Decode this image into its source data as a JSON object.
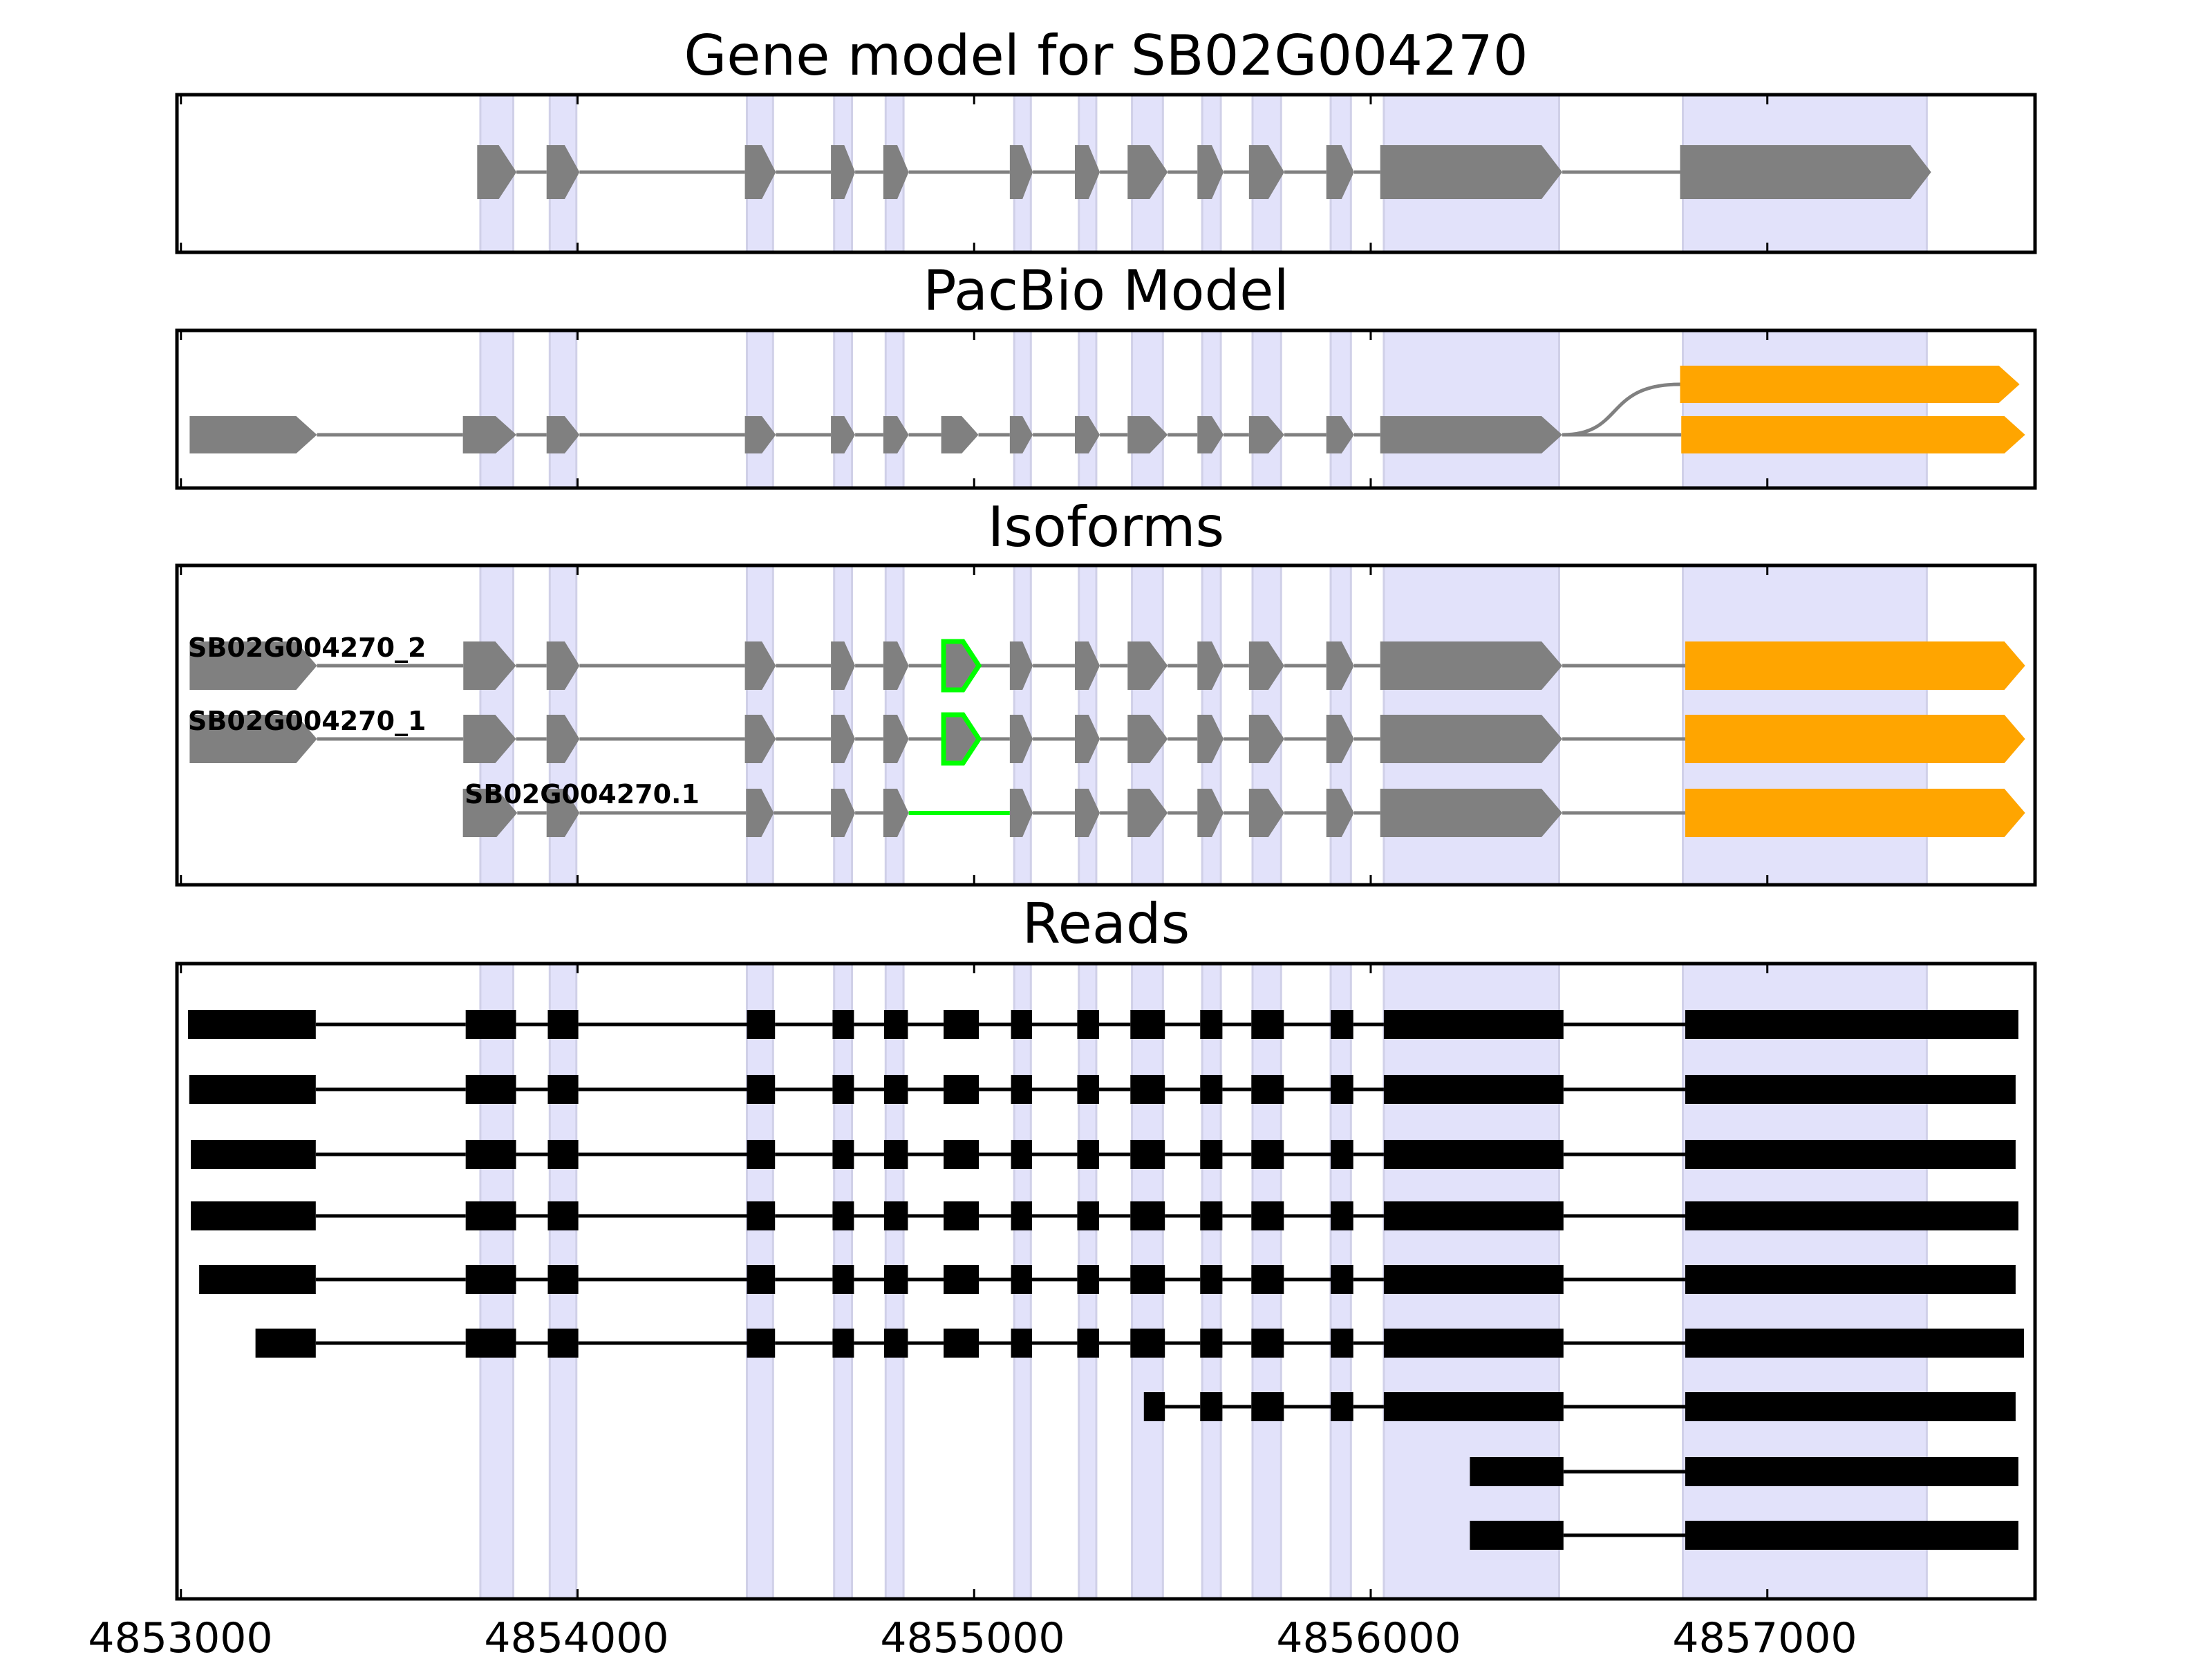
{
  "chart_data": {
    "type": "gene-track",
    "xlim": [
      4852990,
      4857675
    ],
    "x_ticks": [
      4853000,
      4854000,
      4855000,
      4856000,
      4857000
    ],
    "x_tick_labels": [
      "4853000",
      "4854000",
      "4855000",
      "4856000",
      "4857000"
    ],
    "colors": {
      "exon": "#808080",
      "utr": "#ffa500",
      "novel": "#00ff00",
      "read": "#000000",
      "shade": "#e2e2fa",
      "shade_edge": "#d0d0e8"
    },
    "shaded_regions": [
      [
        4853755,
        4853838
      ],
      [
        4853930,
        4853997
      ],
      [
        4854427,
        4854493
      ],
      [
        4854647,
        4854692
      ],
      [
        4854777,
        4854822
      ],
      [
        4855101,
        4855143
      ],
      [
        4855264,
        4855308
      ],
      [
        4855398,
        4855476
      ],
      [
        4855575,
        4855622
      ],
      [
        4855702,
        4855774
      ],
      [
        4855899,
        4855950
      ],
      [
        4856033,
        4856475
      ],
      [
        4856787,
        4857402
      ]
    ],
    "panels": [
      {
        "title": "Gene model for SB02G004270",
        "tracks": [
          {
            "exons": [
              [
                4853747,
                4853846
              ],
              [
                4853922,
                4854005
              ],
              [
                4854422,
                4854500
              ],
              [
                4854639,
                4854700
              ],
              [
                4854771,
                4854835
              ],
              [
                4855090,
                4855148
              ],
              [
                4855254,
                4855317
              ],
              [
                4855387,
                4855488
              ],
              [
                4855563,
                4855629
              ],
              [
                4855693,
                4855782
              ],
              [
                4855888,
                4855958
              ],
              [
                4856024,
                4856483
              ],
              [
                4856780,
                4857413
              ]
            ],
            "color": "#808080"
          }
        ]
      },
      {
        "title": "PacBio Model",
        "tracks": [
          {
            "exons": [
              [
                4853022,
                4853343
              ],
              [
                4853711,
                4853846
              ],
              [
                4853922,
                4854005
              ],
              [
                4854422,
                4854500
              ],
              [
                4854639,
                4854700
              ],
              [
                4854771,
                4854835
              ],
              [
                4854917,
                4855011
              ],
              [
                4855090,
                4855148
              ],
              [
                4855254,
                4855317
              ],
              [
                4855387,
                4855488
              ],
              [
                4855563,
                4855629
              ],
              [
                4855693,
                4855782
              ],
              [
                4855888,
                4855958
              ],
              [
                4856024,
                4856483
              ]
            ],
            "color": "#808080"
          },
          {
            "exons": [
              [
                4856783,
                4857650
              ]
            ],
            "color": "#ffa500"
          },
          {
            "exons": [
              [
                4856780,
                4857636
              ]
            ],
            "color": "#ffa500",
            "branch": true
          }
        ]
      },
      {
        "title": "Isoforms",
        "isoforms": [
          {
            "label": "SB02G004270_2",
            "exons": [
              [
                4853022,
                4853343
              ],
              [
                4853712,
                4853845
              ],
              [
                4853922,
                4854005
              ],
              [
                4854422,
                4854500
              ],
              [
                4854639,
                4854700
              ],
              [
                4854771,
                4854835
              ],
              [
                4854923,
                4855012
              ],
              [
                4855090,
                4855148
              ],
              [
                4855254,
                4855317
              ],
              [
                4855387,
                4855488
              ],
              [
                4855563,
                4855629
              ],
              [
                4855693,
                4855782
              ],
              [
                4855888,
                4855958
              ],
              [
                4856024,
                4856483
              ],
              [
                4856793,
                4857650
              ]
            ],
            "novel_exons": [
              6
            ],
            "utr_exons": [
              14
            ]
          },
          {
            "label": "SB02G004270_1",
            "exons": [
              [
                4853022,
                4853343
              ],
              [
                4853712,
                4853845
              ],
              [
                4853922,
                4854005
              ],
              [
                4854422,
                4854500
              ],
              [
                4854639,
                4854700
              ],
              [
                4854771,
                4854835
              ],
              [
                4854923,
                4855012
              ],
              [
                4855090,
                4855148
              ],
              [
                4855254,
                4855317
              ],
              [
                4855387,
                4855488
              ],
              [
                4855563,
                4855629
              ],
              [
                4855693,
                4855782
              ],
              [
                4855888,
                4855958
              ],
              [
                4856024,
                4856483
              ],
              [
                4856793,
                4857650
              ]
            ],
            "novel_exons": [
              6
            ],
            "utr_exons": [
              14
            ]
          },
          {
            "label": "SB02G004270.1",
            "exons": [
              [
                4853711,
                4853848
              ],
              [
                4853922,
                4854005
              ],
              [
                4854425,
                4854495
              ],
              [
                4854639,
                4854700
              ],
              [
                4854771,
                4854835
              ],
              [
                4855090,
                4855148
              ],
              [
                4855254,
                4855317
              ],
              [
                4855387,
                4855488
              ],
              [
                4855563,
                4855629
              ],
              [
                4855693,
                4855782
              ],
              [
                4855888,
                4855958
              ],
              [
                4856024,
                4856483
              ],
              [
                4856793,
                4857650
              ]
            ],
            "novel_introns": [
              4
            ],
            "utr_exons": [
              12
            ]
          }
        ]
      },
      {
        "title": "Reads",
        "reads": [
          [
            [
              4853018,
              4853340
            ],
            [
              4853718,
              4853845
            ],
            [
              4853925,
              4854002
            ],
            [
              4854427,
              4854498
            ],
            [
              4854643,
              4854697
            ],
            [
              4854773,
              4854833
            ],
            [
              4854923,
              4855012
            ],
            [
              4855093,
              4855146
            ],
            [
              4855260,
              4855315
            ],
            [
              4855394,
              4855481
            ],
            [
              4855570,
              4855626
            ],
            [
              4855699,
              4855781
            ],
            [
              4855899,
              4855956
            ],
            [
              4856033,
              4856486
            ],
            [
              4856793,
              4857633
            ]
          ],
          [
            [
              4853021,
              4853340
            ],
            [
              4853718,
              4853845
            ],
            [
              4853925,
              4854002
            ],
            [
              4854427,
              4854498
            ],
            [
              4854643,
              4854697
            ],
            [
              4854773,
              4854833
            ],
            [
              4854923,
              4855012
            ],
            [
              4855093,
              4855146
            ],
            [
              4855260,
              4855315
            ],
            [
              4855394,
              4855481
            ],
            [
              4855570,
              4855626
            ],
            [
              4855699,
              4855781
            ],
            [
              4855899,
              4855956
            ],
            [
              4856033,
              4856486
            ],
            [
              4856793,
              4857626
            ]
          ],
          [
            [
              4853025,
              4853340
            ],
            [
              4853718,
              4853845
            ],
            [
              4853925,
              4854002
            ],
            [
              4854427,
              4854498
            ],
            [
              4854643,
              4854697
            ],
            [
              4854773,
              4854833
            ],
            [
              4854923,
              4855012
            ],
            [
              4855093,
              4855146
            ],
            [
              4855260,
              4855315
            ],
            [
              4855394,
              4855481
            ],
            [
              4855570,
              4855626
            ],
            [
              4855699,
              4855781
            ],
            [
              4855899,
              4855956
            ],
            [
              4856033,
              4856486
            ],
            [
              4856793,
              4857626
            ]
          ],
          [
            [
              4853025,
              4853340
            ],
            [
              4853718,
              4853845
            ],
            [
              4853925,
              4854002
            ],
            [
              4854427,
              4854498
            ],
            [
              4854643,
              4854697
            ],
            [
              4854773,
              4854833
            ],
            [
              4854923,
              4855012
            ],
            [
              4855093,
              4855146
            ],
            [
              4855260,
              4855315
            ],
            [
              4855394,
              4855481
            ],
            [
              4855570,
              4855626
            ],
            [
              4855699,
              4855781
            ],
            [
              4855899,
              4855956
            ],
            [
              4856033,
              4856486
            ],
            [
              4856793,
              4857633
            ]
          ],
          [
            [
              4853046,
              4853340
            ],
            [
              4853718,
              4853845
            ],
            [
              4853925,
              4854002
            ],
            [
              4854427,
              4854498
            ],
            [
              4854643,
              4854697
            ],
            [
              4854773,
              4854833
            ],
            [
              4854923,
              4855012
            ],
            [
              4855093,
              4855146
            ],
            [
              4855260,
              4855315
            ],
            [
              4855394,
              4855481
            ],
            [
              4855570,
              4855626
            ],
            [
              4855699,
              4855781
            ],
            [
              4855899,
              4855956
            ],
            [
              4856033,
              4856486
            ],
            [
              4856793,
              4857626
            ]
          ],
          [
            [
              4853188,
              4853340
            ],
            [
              4853718,
              4853845
            ],
            [
              4853925,
              4854002
            ],
            [
              4854427,
              4854498
            ],
            [
              4854643,
              4854697
            ],
            [
              4854773,
              4854833
            ],
            [
              4854923,
              4855012
            ],
            [
              4855093,
              4855146
            ],
            [
              4855260,
              4855315
            ],
            [
              4855394,
              4855481
            ],
            [
              4855570,
              4855626
            ],
            [
              4855699,
              4855781
            ],
            [
              4855899,
              4855956
            ],
            [
              4856033,
              4856486
            ],
            [
              4856793,
              4857647
            ]
          ],
          [
            [
              4855428,
              4855481
            ],
            [
              4855570,
              4855626
            ],
            [
              4855699,
              4855781
            ],
            [
              4855899,
              4855956
            ],
            [
              4856033,
              4856486
            ],
            [
              4856793,
              4857626
            ]
          ],
          [
            [
              4856250,
              4856486
            ],
            [
              4856793,
              4857633
            ]
          ],
          [
            [
              4856250,
              4856486
            ],
            [
              4856793,
              4857633
            ]
          ]
        ]
      }
    ]
  }
}
